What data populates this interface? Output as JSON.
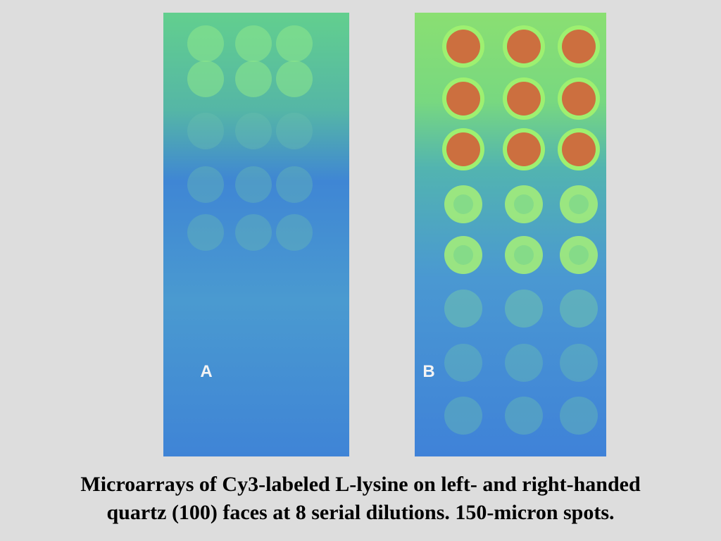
{
  "panels": [
    {
      "label": "A"
    },
    {
      "label": "B"
    }
  ],
  "caption": [
    "Microarrays of Cy3-labeled L-lysine on left- and right-handed",
    "quartz (100) faces at 8 serial dilutions. 150-micron spots."
  ]
}
